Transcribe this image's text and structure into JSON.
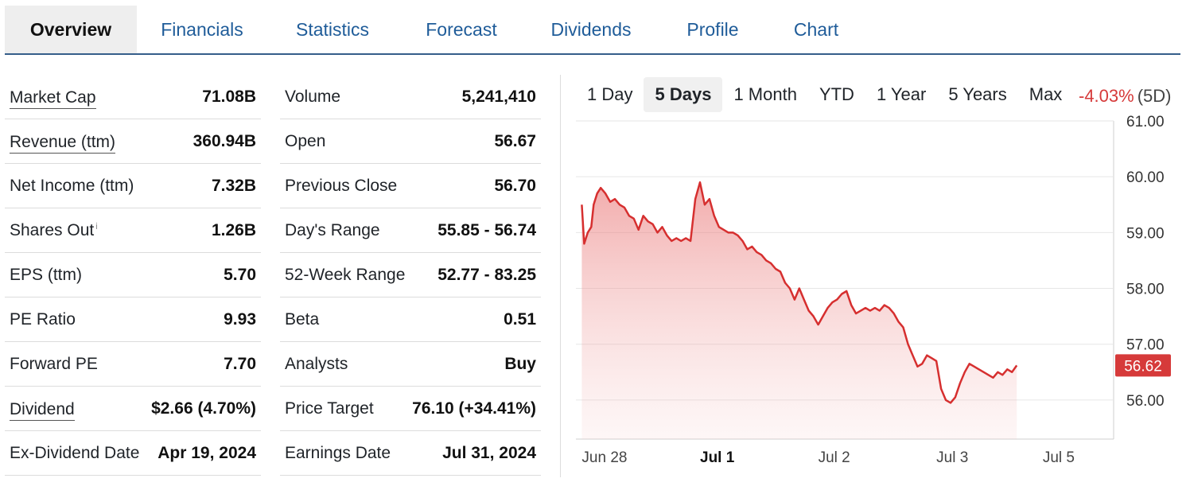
{
  "tabs": [
    "Overview",
    "Financials",
    "Statistics",
    "Forecast",
    "Dividends",
    "Profile",
    "Chart"
  ],
  "stats_left": [
    {
      "label": "Market Cap",
      "value": "71.08B",
      "link": true
    },
    {
      "label": "Revenue (ttm)",
      "value": "360.94B",
      "link": true
    },
    {
      "label": "Net Income (ttm)",
      "value": "7.32B",
      "link": false
    },
    {
      "label": "Shares Out",
      "value": "1.26B",
      "link": false,
      "info": "i"
    },
    {
      "label": "EPS (ttm)",
      "value": "5.70",
      "link": false
    },
    {
      "label": "PE Ratio",
      "value": "9.93",
      "link": false
    },
    {
      "label": "Forward PE",
      "value": "7.70",
      "link": false
    },
    {
      "label": "Dividend",
      "value": "$2.66 (4.70%)",
      "link": true
    },
    {
      "label": "Ex-Dividend Date",
      "value": "Apr 19, 2024",
      "link": false
    }
  ],
  "stats_right": [
    {
      "label": "Volume",
      "value": "5,241,410"
    },
    {
      "label": "Open",
      "value": "56.67"
    },
    {
      "label": "Previous Close",
      "value": "56.70"
    },
    {
      "label": "Day's Range",
      "value": "55.85 - 56.74"
    },
    {
      "label": "52-Week Range",
      "value": "52.77 - 83.25"
    },
    {
      "label": "Beta",
      "value": "0.51"
    },
    {
      "label": "Analysts",
      "value": "Buy"
    },
    {
      "label": "Price Target",
      "value": "76.10 (+34.41%)"
    },
    {
      "label": "Earnings Date",
      "value": "Jul 31, 2024"
    }
  ],
  "ranges": [
    "1 Day",
    "5 Days",
    "1 Month",
    "YTD",
    "1 Year",
    "5 Years",
    "Max"
  ],
  "active_range": "5 Days",
  "change": {
    "pct": "-4.03%",
    "period": "(5D)"
  },
  "colors": {
    "accent": "#1f5c99",
    "negative": "#d63a3a",
    "line": "#d62f2f"
  },
  "chart_data": {
    "type": "area",
    "y_ticks": [
      "61.00",
      "60.00",
      "59.00",
      "58.00",
      "57.00",
      "56.00"
    ],
    "ylim": [
      55.3,
      61.0
    ],
    "x_ticks": [
      {
        "label": "Jun 28",
        "bold": false,
        "t": 0.0
      },
      {
        "label": "Jul 1",
        "bold": true,
        "t": 1.0
      },
      {
        "label": "Jul 2",
        "bold": false,
        "t": 2.0
      },
      {
        "label": "Jul 3",
        "bold": false,
        "t": 3.0
      },
      {
        "label": "Jul 5",
        "bold": false,
        "t": 3.9
      }
    ],
    "xlim": [
      -0.05,
      4.5
    ],
    "last_price": "56.62",
    "series": [
      {
        "t": 0.0,
        "v": 59.5
      },
      {
        "t": 0.02,
        "v": 58.8
      },
      {
        "t": 0.05,
        "v": 59.0
      },
      {
        "t": 0.08,
        "v": 59.1
      },
      {
        "t": 0.1,
        "v": 59.5
      },
      {
        "t": 0.13,
        "v": 59.7
      },
      {
        "t": 0.16,
        "v": 59.8
      },
      {
        "t": 0.2,
        "v": 59.7
      },
      {
        "t": 0.24,
        "v": 59.55
      },
      {
        "t": 0.28,
        "v": 59.6
      },
      {
        "t": 0.32,
        "v": 59.5
      },
      {
        "t": 0.36,
        "v": 59.45
      },
      {
        "t": 0.4,
        "v": 59.3
      },
      {
        "t": 0.44,
        "v": 59.25
      },
      {
        "t": 0.48,
        "v": 59.05
      },
      {
        "t": 0.52,
        "v": 59.3
      },
      {
        "t": 0.56,
        "v": 59.2
      },
      {
        "t": 0.6,
        "v": 59.15
      },
      {
        "t": 0.64,
        "v": 59.0
      },
      {
        "t": 0.68,
        "v": 59.1
      },
      {
        "t": 0.72,
        "v": 58.95
      },
      {
        "t": 0.76,
        "v": 58.85
      },
      {
        "t": 0.8,
        "v": 58.9
      },
      {
        "t": 0.84,
        "v": 58.85
      },
      {
        "t": 0.88,
        "v": 58.9
      },
      {
        "t": 0.92,
        "v": 58.85
      },
      {
        "t": 0.96,
        "v": 59.6
      },
      {
        "t": 1.0,
        "v": 59.9
      },
      {
        "t": 1.04,
        "v": 59.5
      },
      {
        "t": 1.08,
        "v": 59.6
      },
      {
        "t": 1.12,
        "v": 59.3
      },
      {
        "t": 1.16,
        "v": 59.1
      },
      {
        "t": 1.2,
        "v": 59.05
      },
      {
        "t": 1.24,
        "v": 59.0
      },
      {
        "t": 1.28,
        "v": 59.0
      },
      {
        "t": 1.32,
        "v": 58.95
      },
      {
        "t": 1.36,
        "v": 58.85
      },
      {
        "t": 1.4,
        "v": 58.7
      },
      {
        "t": 1.44,
        "v": 58.75
      },
      {
        "t": 1.48,
        "v": 58.65
      },
      {
        "t": 1.52,
        "v": 58.6
      },
      {
        "t": 1.56,
        "v": 58.5
      },
      {
        "t": 1.6,
        "v": 58.45
      },
      {
        "t": 1.64,
        "v": 58.35
      },
      {
        "t": 1.68,
        "v": 58.3
      },
      {
        "t": 1.72,
        "v": 58.1
      },
      {
        "t": 1.76,
        "v": 58.0
      },
      {
        "t": 1.8,
        "v": 57.8
      },
      {
        "t": 1.84,
        "v": 58.0
      },
      {
        "t": 1.88,
        "v": 57.8
      },
      {
        "t": 1.92,
        "v": 57.6
      },
      {
        "t": 1.96,
        "v": 57.5
      },
      {
        "t": 2.0,
        "v": 57.35
      },
      {
        "t": 2.04,
        "v": 57.5
      },
      {
        "t": 2.08,
        "v": 57.65
      },
      {
        "t": 2.12,
        "v": 57.75
      },
      {
        "t": 2.16,
        "v": 57.8
      },
      {
        "t": 2.2,
        "v": 57.9
      },
      {
        "t": 2.24,
        "v": 57.95
      },
      {
        "t": 2.28,
        "v": 57.7
      },
      {
        "t": 2.32,
        "v": 57.55
      },
      {
        "t": 2.36,
        "v": 57.6
      },
      {
        "t": 2.4,
        "v": 57.65
      },
      {
        "t": 2.44,
        "v": 57.6
      },
      {
        "t": 2.48,
        "v": 57.65
      },
      {
        "t": 2.52,
        "v": 57.6
      },
      {
        "t": 2.56,
        "v": 57.7
      },
      {
        "t": 2.6,
        "v": 57.65
      },
      {
        "t": 2.64,
        "v": 57.55
      },
      {
        "t": 2.68,
        "v": 57.4
      },
      {
        "t": 2.72,
        "v": 57.3
      },
      {
        "t": 2.76,
        "v": 57.0
      },
      {
        "t": 2.8,
        "v": 56.8
      },
      {
        "t": 2.84,
        "v": 56.6
      },
      {
        "t": 2.88,
        "v": 56.65
      },
      {
        "t": 2.92,
        "v": 56.8
      },
      {
        "t": 2.96,
        "v": 56.75
      },
      {
        "t": 3.0,
        "v": 56.7
      },
      {
        "t": 3.04,
        "v": 56.2
      },
      {
        "t": 3.08,
        "v": 56.0
      },
      {
        "t": 3.12,
        "v": 55.95
      },
      {
        "t": 3.16,
        "v": 56.05
      },
      {
        "t": 3.2,
        "v": 56.3
      },
      {
        "t": 3.24,
        "v": 56.5
      },
      {
        "t": 3.28,
        "v": 56.65
      },
      {
        "t": 3.32,
        "v": 56.6
      },
      {
        "t": 3.36,
        "v": 56.55
      },
      {
        "t": 3.4,
        "v": 56.5
      },
      {
        "t": 3.44,
        "v": 56.45
      },
      {
        "t": 3.48,
        "v": 56.4
      },
      {
        "t": 3.52,
        "v": 56.5
      },
      {
        "t": 3.56,
        "v": 56.45
      },
      {
        "t": 3.6,
        "v": 56.55
      },
      {
        "t": 3.64,
        "v": 56.5
      },
      {
        "t": 3.68,
        "v": 56.62
      }
    ]
  }
}
